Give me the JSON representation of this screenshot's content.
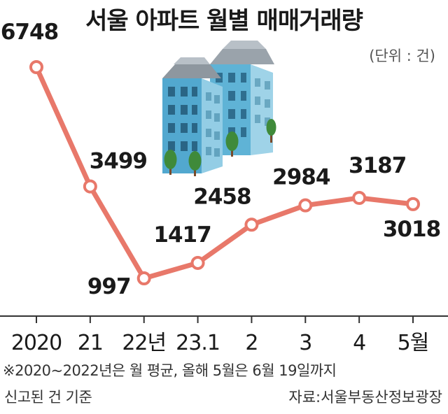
{
  "header": {
    "title": "서울 아파트 월별 매매거래량",
    "unit": "(단위 : 건)"
  },
  "footer": {
    "note_line1": "※2020~2022년은 월 평균, 올해 5월은 6월 19일까지",
    "note_line2": "신고된 건 기준",
    "source": "자료:서울부동산정보광장"
  },
  "colors": {
    "line": "#e8786a",
    "point_fill": "#ffffff",
    "axis": "#333333"
  },
  "chart_data": {
    "type": "line",
    "title": "서울 아파트 월별 매매거래량",
    "categories": [
      "2020",
      "21",
      "22년",
      "23.1",
      "2",
      "3",
      "4",
      "5월"
    ],
    "values": [
      6748,
      3499,
      997,
      1417,
      2458,
      2984,
      3187,
      3018
    ],
    "data_labels": [
      "6748",
      "3499",
      "997",
      "1417",
      "2458",
      "2984",
      "3187",
      "3018"
    ],
    "unit": "건",
    "xlabel": "",
    "ylabel": "",
    "ylim": [
      0,
      7500
    ],
    "grid": false,
    "legend": "none"
  }
}
